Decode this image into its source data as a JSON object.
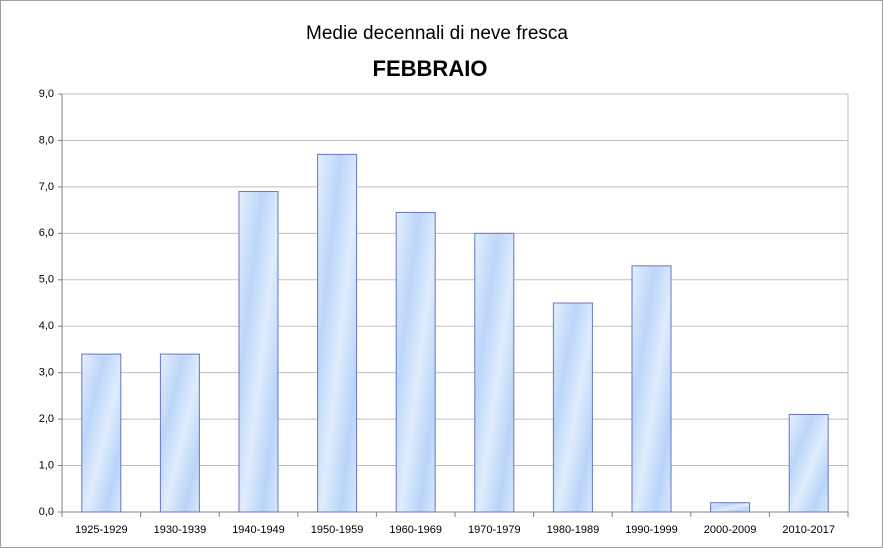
{
  "chart_data": {
    "type": "bar",
    "title": "Medie decennali di neve fresca",
    "subtitle": "FEBBRAIO",
    "categories": [
      "1925-1929",
      "1930-1939",
      "1940-1949",
      "1950-1959",
      "1960-1969",
      "1970-1979",
      "1980-1989",
      "1990-1999",
      "2000-2009",
      "2010-2017"
    ],
    "values": [
      3.4,
      3.4,
      6.9,
      7.7,
      6.45,
      6.0,
      4.5,
      5.3,
      0.2,
      2.1
    ],
    "color": "#c6ddfb",
    "ylim": [
      0,
      9
    ],
    "yticks": [
      {
        "value": 0,
        "label": "0,0"
      },
      {
        "value": 1,
        "label": "1,0"
      },
      {
        "value": 2,
        "label": "2,0"
      },
      {
        "value": 3,
        "label": "3,0"
      },
      {
        "value": 4,
        "label": "4,0"
      },
      {
        "value": 5,
        "label": "5,0"
      },
      {
        "value": 6,
        "label": "6,0"
      },
      {
        "value": 7,
        "label": "7,0"
      },
      {
        "value": 8,
        "label": "8,0"
      },
      {
        "value": 9,
        "label": "9,0"
      }
    ],
    "grid": true
  }
}
